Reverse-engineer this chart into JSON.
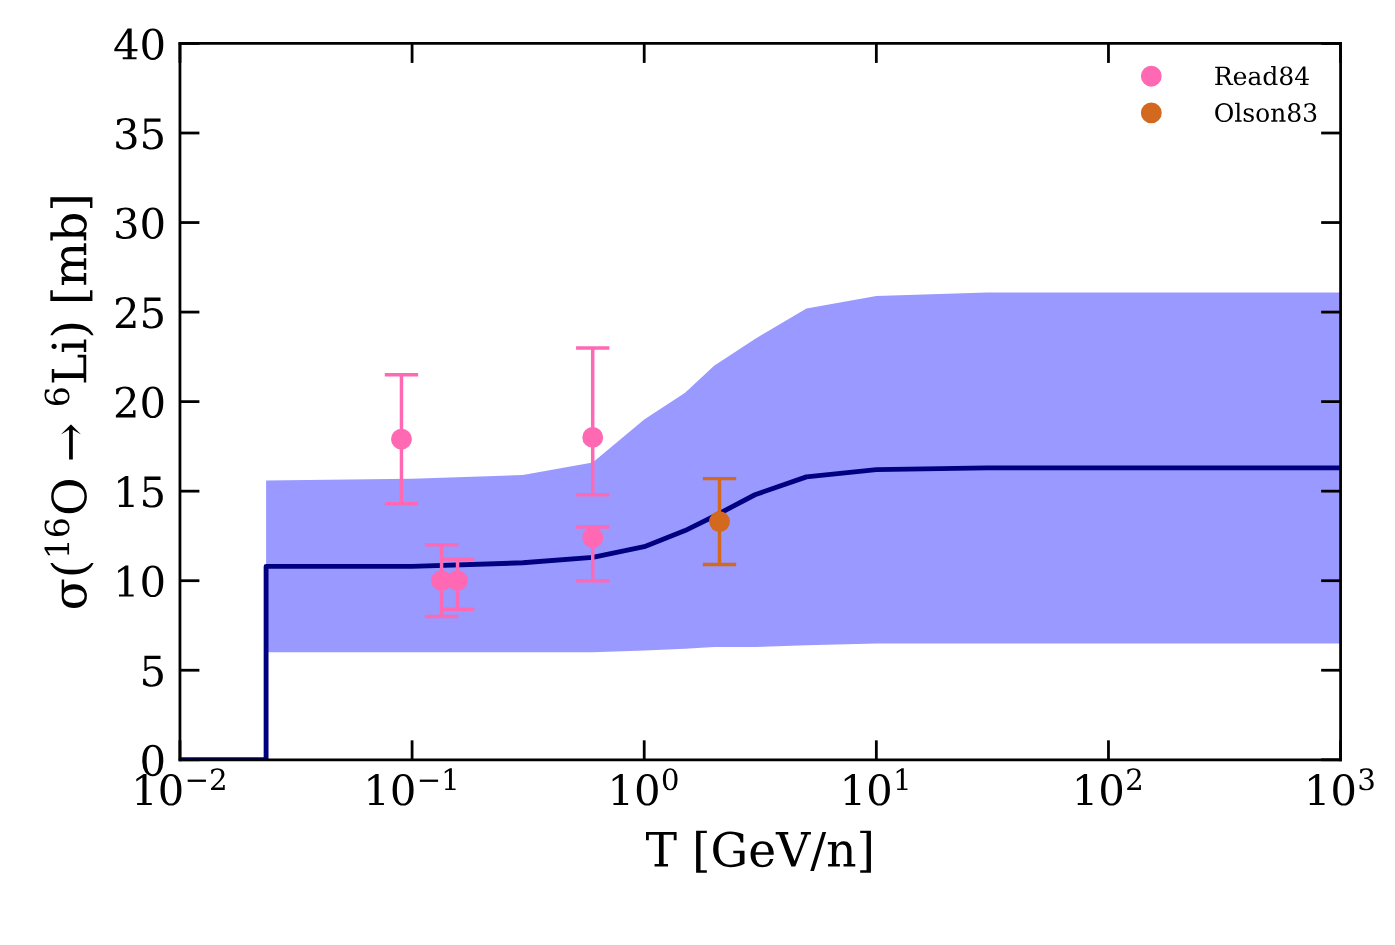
{
  "chart_data": {
    "type": "scatter",
    "xlabel": "T [GeV/n]",
    "ylabel": "σ($^{16}$O → $^{6}$Li) [mb]",
    "log": "x",
    "xlim": [
      0.01,
      1000
    ],
    "ylim": [
      0,
      40
    ],
    "xticks": [
      {
        "value": 0.01,
        "label": "10$^{−2}$"
      },
      {
        "value": 0.1,
        "label": "10$^{−1}$"
      },
      {
        "value": 1,
        "label": "10$^{0}$"
      },
      {
        "value": 10,
        "label": "10$^{1}$"
      },
      {
        "value": 100,
        "label": "10$^{2}$"
      },
      {
        "value": 1000,
        "label": "10$^{3}$"
      }
    ],
    "yticks": [
      0,
      5,
      10,
      15,
      20,
      25,
      30,
      35,
      40
    ],
    "grid": false,
    "legend": "top right",
    "marker": "circle",
    "series": [
      {
        "type": "line",
        "color": "#000080",
        "x": [
          0.01,
          0.0235,
          0.0235,
          0.1,
          0.3,
          0.6,
          1,
          1.5,
          2,
          3,
          5,
          10,
          30,
          1000
        ],
        "values": [
          0,
          0,
          10.8,
          10.8,
          11.0,
          11.3,
          11.9,
          12.8,
          13.6,
          14.8,
          15.8,
          16.2,
          16.3,
          16.3
        ],
        "lower": [
          null,
          6.0,
          6.0,
          6.0,
          6.0,
          6.0,
          6.1,
          6.2,
          6.3,
          6.3,
          6.4,
          6.5,
          6.5,
          6.5
        ],
        "upper": [
          null,
          15.6,
          15.6,
          15.7,
          15.9,
          16.6,
          19.0,
          20.5,
          22.0,
          23.5,
          25.2,
          25.9,
          26.1,
          26.1
        ],
        "marker": "none"
      },
      {
        "name": "Read84",
        "color": "#ff69b4",
        "x": [
          0.09,
          0.134,
          0.157,
          0.6,
          0.6
        ],
        "values": [
          17.9,
          10.0,
          10.0,
          18.0,
          12.4
        ],
        "errors": [
          [
            14.3,
            21.5
          ],
          [
            8.0,
            12.0
          ],
          [
            8.4,
            11.2
          ],
          [
            14.8,
            23.0
          ],
          [
            10.0,
            13.0
          ]
        ]
      },
      {
        "name": "Olson83",
        "color": "#d2691e",
        "x": [
          2.11
        ],
        "values": [
          13.3
        ],
        "errors": [
          [
            10.9,
            15.7
          ]
        ]
      }
    ]
  }
}
